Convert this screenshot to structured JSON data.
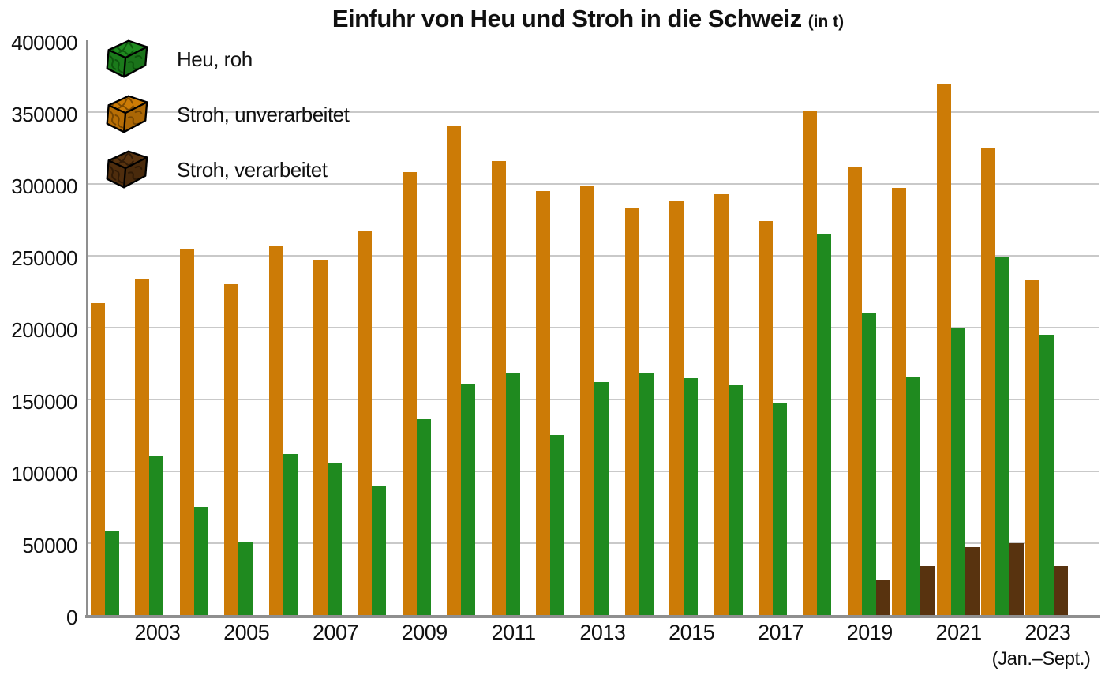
{
  "chart_data": {
    "type": "bar",
    "title": "Einfuhr von Heu und Stroh in die Schweiz",
    "unit_label": "(in t)",
    "x_note": "(Jan.–Sept.)",
    "categories": [
      "2002",
      "2003",
      "2004",
      "2005",
      "2006",
      "2007",
      "2008",
      "2009",
      "2010",
      "2011",
      "2012",
      "2013",
      "2014",
      "2015",
      "2016",
      "2017",
      "2018",
      "2019",
      "2020",
      "2021",
      "2022",
      "2023"
    ],
    "x_tick_labels": [
      "2003",
      "2005",
      "2007",
      "2009",
      "2011",
      "2013",
      "2015",
      "2017",
      "2019",
      "2021",
      "2023"
    ],
    "y_ticks": [
      "0",
      "50000",
      "100000",
      "150000",
      "200000",
      "250000",
      "300000",
      "350000",
      "400000"
    ],
    "ylim": [
      0,
      400000
    ],
    "grid": true,
    "legend_position": "top-left",
    "background": "#ffffff",
    "gridline_color": "#c9c9c9",
    "axis_color": "#8f8f8f",
    "series": [
      {
        "name": "Heu, roh",
        "color": "#1F8A1F",
        "shade": "#0C4F0C",
        "col": 1,
        "values": [
          58000,
          111000,
          75000,
          51000,
          112000,
          106000,
          90000,
          136000,
          161000,
          168000,
          125000,
          162000,
          168000,
          165000,
          160000,
          147000,
          265000,
          210000,
          166000,
          200000,
          249000,
          195000
        ]
      },
      {
        "name": "Stroh, unverarbeitet",
        "color": "#CC7B06",
        "shade": "#6E4202",
        "col": 0,
        "values": [
          217000,
          234000,
          255000,
          230000,
          257000,
          247000,
          267000,
          308000,
          340000,
          316000,
          295000,
          299000,
          283000,
          288000,
          293000,
          274000,
          351000,
          312000,
          297000,
          369000,
          325000,
          233000
        ]
      },
      {
        "name": "Stroh, verarbeitet",
        "color": "#58330F",
        "shade": "#2A1706",
        "col": 2,
        "values": [
          null,
          null,
          null,
          null,
          null,
          null,
          null,
          null,
          null,
          null,
          null,
          null,
          null,
          null,
          null,
          null,
          null,
          24000,
          34000,
          47000,
          50000,
          34000
        ]
      }
    ]
  }
}
